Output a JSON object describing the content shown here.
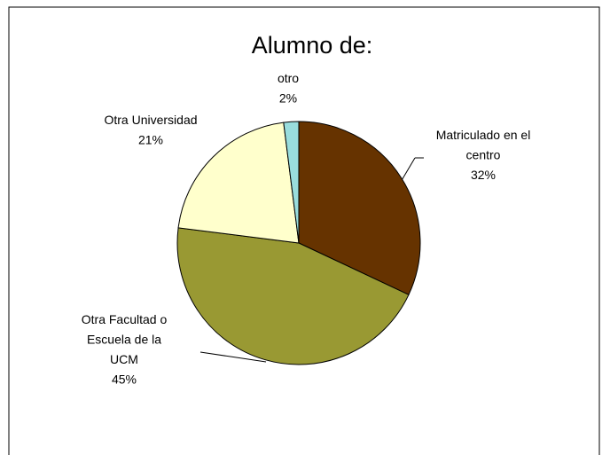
{
  "chart_data": {
    "type": "pie",
    "title": "Alumno de:",
    "categories": [
      "Matriculado en el centro",
      "Otra Facultad o Escuela de la UCM",
      "Otra Universidad",
      "otro"
    ],
    "values": [
      32,
      45,
      21,
      2
    ],
    "value_labels": [
      "32%",
      "45%",
      "21%",
      "2%"
    ],
    "colors": [
      "#663300",
      "#999933",
      "#ffffcc",
      "#99dddd"
    ]
  }
}
